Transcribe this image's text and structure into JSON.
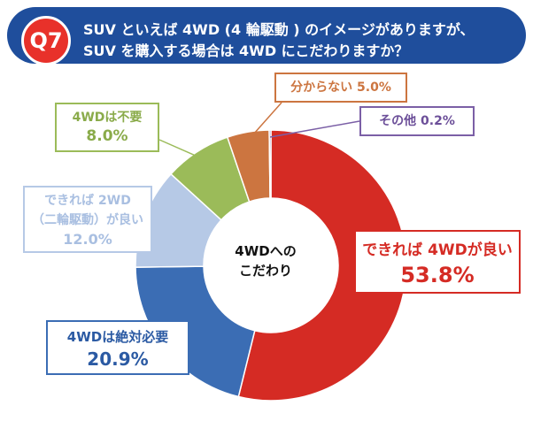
{
  "header": {
    "badge": "Q7",
    "question_line1": "SUV といえば 4WD (4 輪駆動 ) のイメージがありますが、",
    "question_line2": "SUV を購入する場合は 4WD にこだわりますか？"
  },
  "center_label_line1": "4WDへの",
  "center_label_line2": "こだわり",
  "chart_data": {
    "type": "pie",
    "variant": "donut",
    "start": "top, clockwise",
    "unit": "%",
    "categories": [
      "できれば 4WDが良い",
      "4WDは絶対必要",
      "できれば 2WD（二輪駆動）が良い",
      "4WDは不要",
      "分からない",
      "その他"
    ],
    "values": [
      53.8,
      20.9,
      12.0,
      8.0,
      5.0,
      0.2
    ],
    "colors": [
      "#d52b24",
      "#3b6db4",
      "#b6c9e6",
      "#9bbb59",
      "#cc7540",
      "#7b5fa6"
    ]
  },
  "callouts": {
    "prefer_4wd": {
      "label": "できれば 4WDが良い",
      "value": "53.8%",
      "color": "#d52b24"
    },
    "must_4wd": {
      "label": "4WDは絶対必要",
      "value": "20.9%",
      "color": "#3b6db4"
    },
    "prefer_2wd": {
      "label1": "できれば 2WD",
      "label2": "（二輪駆動）が良い",
      "value": "12.0%",
      "color": "#a9bfe1"
    },
    "no_4wd": {
      "label": "4WDは不要",
      "value": "8.0%",
      "color": "#9bbb59"
    },
    "unknown": {
      "label": "分からない 5.0%",
      "color": "#cc7540"
    },
    "other": {
      "label": "その他 0.2%",
      "color": "#7b5fa6"
    }
  }
}
